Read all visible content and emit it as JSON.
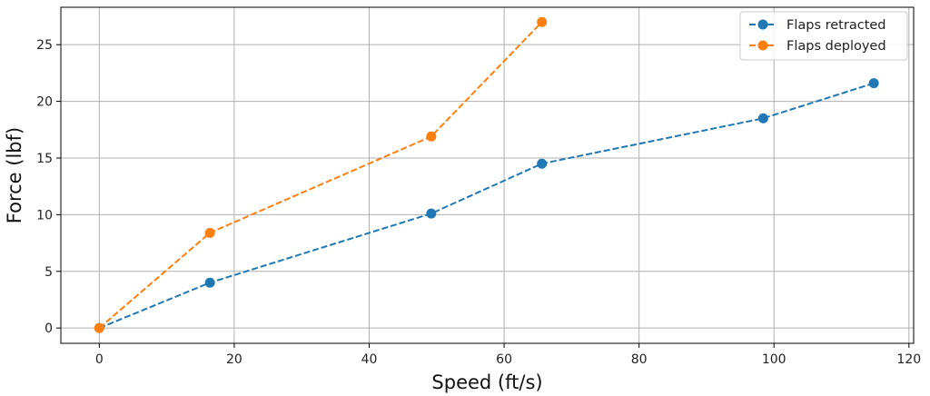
{
  "chart_data": {
    "type": "line",
    "title": "",
    "xlabel": "Speed (ft/s)",
    "ylabel": "Force (lbf)",
    "xlim": [
      -5.7,
      120.7
    ],
    "ylim": [
      -1.35,
      28.3
    ],
    "xticks": [
      0,
      20,
      40,
      60,
      80,
      100,
      120
    ],
    "yticks": [
      0,
      5,
      10,
      15,
      20,
      25
    ],
    "grid": true,
    "legend_position": "top-right",
    "series": [
      {
        "name": "Flaps retracted",
        "color": "#1f77b4",
        "line_style": "dashed",
        "marker": "circle",
        "x": [
          0,
          16.4,
          49.2,
          65.6,
          98.4,
          114.8
        ],
        "y": [
          0,
          4.0,
          10.1,
          14.5,
          18.5,
          21.6
        ]
      },
      {
        "name": "Flaps deployed",
        "color": "#ff7f0e",
        "line_style": "dashed",
        "marker": "circle",
        "x": [
          0,
          16.4,
          49.2,
          65.6
        ],
        "y": [
          0,
          8.4,
          16.9,
          27.0
        ]
      }
    ]
  }
}
